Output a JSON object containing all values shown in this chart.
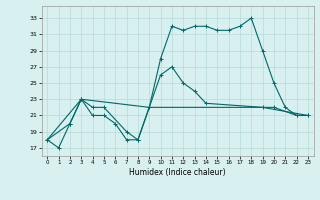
{
  "title": "",
  "xlabel": "Humidex (Indice chaleur)",
  "bg_color": "#d8f0f0",
  "grid_color": "#b8dada",
  "line_color": "#006868",
  "xlim": [
    -0.5,
    23.5
  ],
  "ylim": [
    16,
    34.5
  ],
  "yticks": [
    17,
    19,
    21,
    23,
    25,
    27,
    29,
    31,
    33
  ],
  "xticks": [
    0,
    1,
    2,
    3,
    4,
    5,
    6,
    7,
    8,
    9,
    10,
    11,
    12,
    13,
    14,
    15,
    16,
    17,
    18,
    19,
    20,
    21,
    22,
    23
  ],
  "line1_x": [
    0,
    1,
    2,
    3,
    4,
    5,
    6,
    7,
    8,
    9,
    10,
    11,
    12,
    13,
    14,
    15,
    16,
    17,
    18,
    19,
    20,
    21,
    22,
    23
  ],
  "line1_y": [
    18,
    17,
    20,
    23,
    21,
    21,
    20,
    18,
    18,
    22,
    28,
    32,
    31.5,
    32,
    32,
    31.5,
    31.5,
    32,
    33,
    29,
    25,
    22,
    21,
    21
  ],
  "line2_x": [
    0,
    2,
    3,
    4,
    5,
    7,
    8,
    9,
    10,
    11,
    12,
    13,
    14,
    19,
    20,
    22,
    23
  ],
  "line2_y": [
    18,
    20,
    23,
    22,
    22,
    19,
    18,
    22,
    26,
    27,
    25,
    24,
    22.5,
    22,
    22,
    21,
    21
  ],
  "line3_x": [
    0,
    3,
    9,
    14,
    19,
    23
  ],
  "line3_y": [
    18,
    23,
    22,
    22,
    22,
    21
  ]
}
